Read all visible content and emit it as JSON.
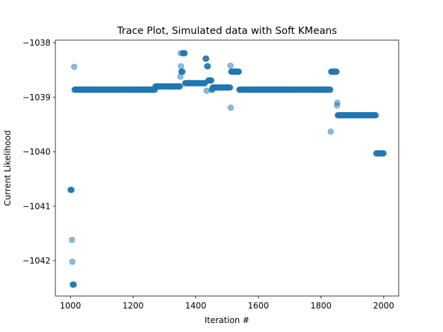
{
  "chart_data": {
    "type": "scatter",
    "title": "Trace Plot, Simulated data with Soft KMeans",
    "xlabel": "Iteration #",
    "ylabel": "Current Likelihood",
    "xlim": [
      952,
      2048
    ],
    "ylim": [
      -1042.65,
      -1037.95
    ],
    "xticks": [
      1000,
      1200,
      1400,
      1600,
      1800,
      2000
    ],
    "yticks": [
      -1038,
      -1039,
      -1040,
      -1041,
      -1042
    ],
    "grid": false,
    "marker_color": "#1f77b4",
    "marker_alpha": 0.5,
    "runs": [
      {
        "x0": 1000,
        "x1": 1004,
        "y": -1040.7
      },
      {
        "x0": 1005,
        "x1": 1005,
        "y": -1041.62
      },
      {
        "x0": 1006,
        "x1": 1006,
        "y": -1042.02
      },
      {
        "x0": 1007,
        "x1": 1011,
        "y": -1042.44
      },
      {
        "x0": 1012,
        "x1": 1012,
        "y": -1038.44
      },
      {
        "x0": 1013,
        "x1": 1270,
        "y": -1038.86
      },
      {
        "x0": 1271,
        "x1": 1350,
        "y": -1038.8
      },
      {
        "x0": 1351,
        "x1": 1351,
        "y": -1038.62
      },
      {
        "x0": 1352,
        "x1": 1352,
        "y": -1038.19
      },
      {
        "x0": 1353,
        "x1": 1353,
        "y": -1038.43
      },
      {
        "x0": 1354,
        "x1": 1358,
        "y": -1038.53
      },
      {
        "x0": 1359,
        "x1": 1365,
        "y": -1038.19
      },
      {
        "x0": 1366,
        "x1": 1430,
        "y": -1038.74
      },
      {
        "x0": 1431,
        "x1": 1434,
        "y": -1038.29
      },
      {
        "x0": 1435,
        "x1": 1435,
        "y": -1038.88
      },
      {
        "x0": 1436,
        "x1": 1439,
        "y": -1038.43
      },
      {
        "x0": 1440,
        "x1": 1450,
        "y": -1038.69
      },
      {
        "x0": 1451,
        "x1": 1453,
        "y": -1038.86
      },
      {
        "x0": 1454,
        "x1": 1510,
        "y": -1038.82
      },
      {
        "x0": 1511,
        "x1": 1511,
        "y": -1038.42
      },
      {
        "x0": 1512,
        "x1": 1512,
        "y": -1039.19
      },
      {
        "x0": 1513,
        "x1": 1538,
        "y": -1038.53
      },
      {
        "x0": 1539,
        "x1": 1830,
        "y": -1038.86
      },
      {
        "x0": 1831,
        "x1": 1831,
        "y": -1039.63
      },
      {
        "x0": 1832,
        "x1": 1850,
        "y": -1038.53
      },
      {
        "x0": 1851,
        "x1": 1851,
        "y": -1039.15
      },
      {
        "x0": 1852,
        "x1": 1852,
        "y": -1039.1
      },
      {
        "x0": 1853,
        "x1": 1975,
        "y": -1039.33
      },
      {
        "x0": 1976,
        "x1": 2000,
        "y": -1040.03
      }
    ]
  }
}
